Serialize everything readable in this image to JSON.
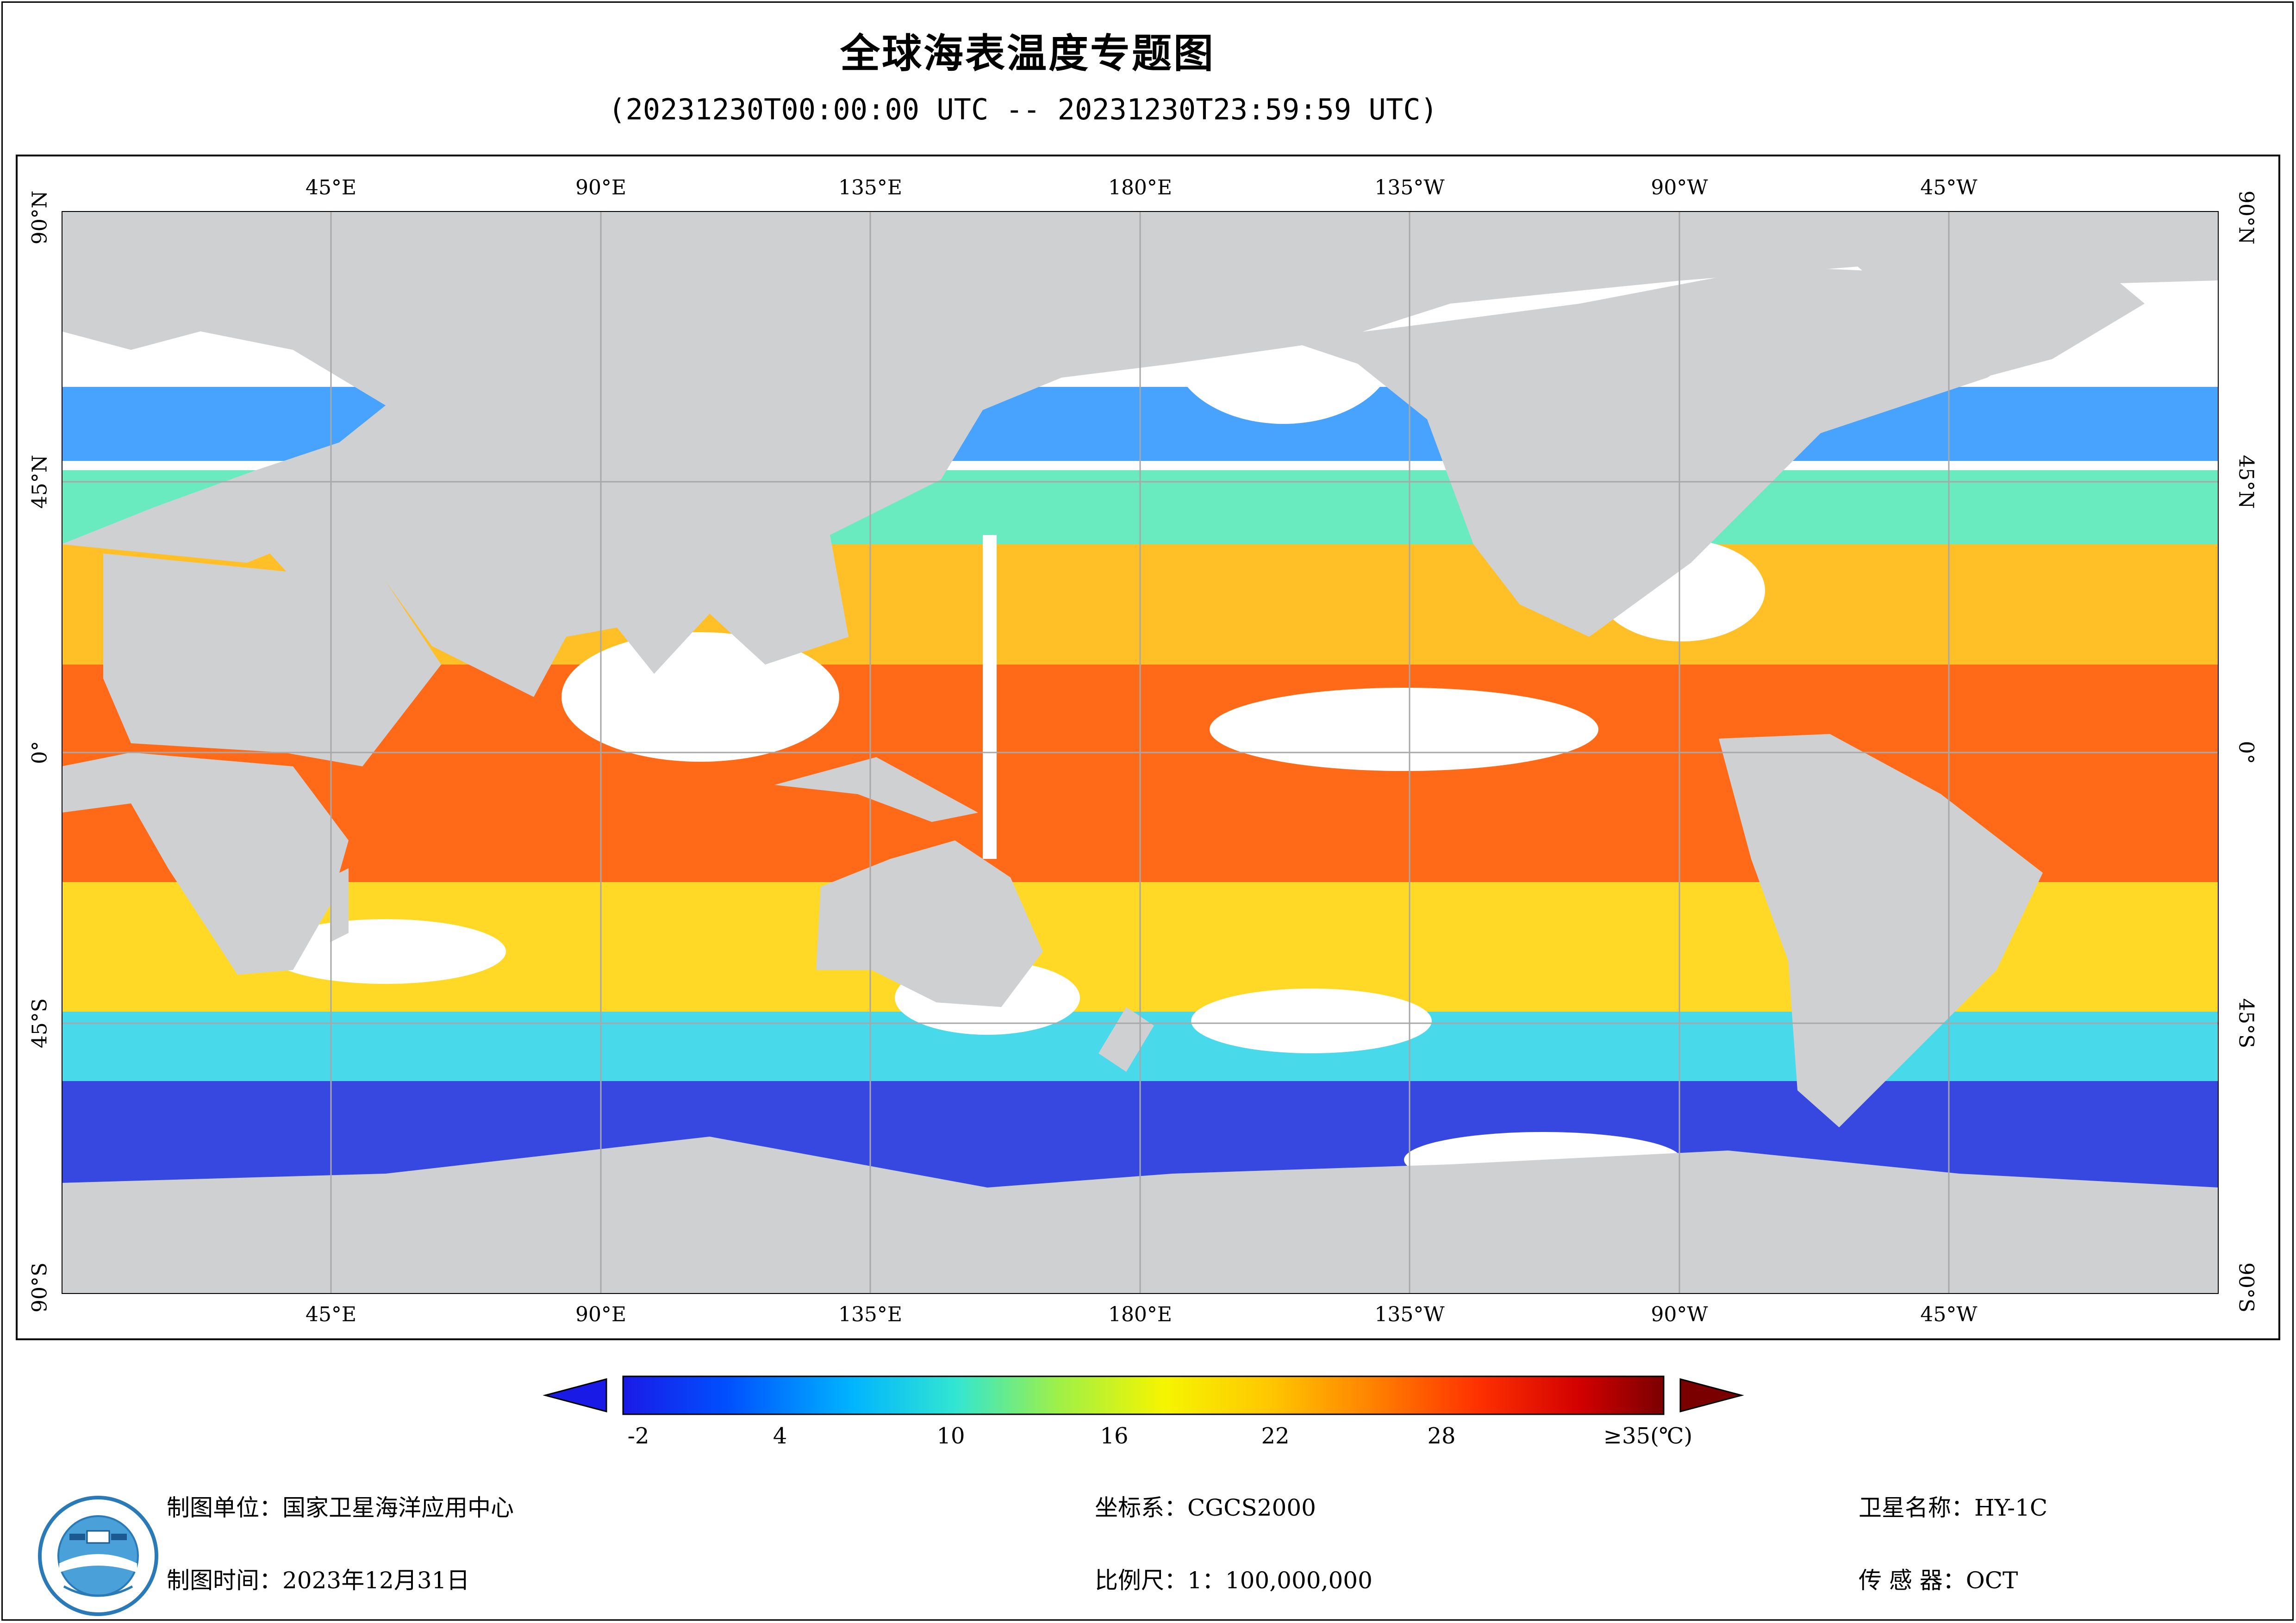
{
  "title": "全球海表温度专题图",
  "subtitle": "(20231230T00:00:00 UTC -- 20231230T23:59:59 UTC)",
  "map": {
    "top_lon_labels": [
      "45°E",
      "90°E",
      "135°E",
      "180°E",
      "135°W",
      "90°W",
      "45°W"
    ],
    "bottom_lon_labels": [
      "45°E",
      "90°E",
      "135°E",
      "180°E",
      "135°W",
      "90°W",
      "45°W"
    ],
    "left_lat_labels": [
      "90°N",
      "45°N",
      "0°",
      "45°S",
      "90°S"
    ],
    "right_lat_labels": [
      "90°N",
      "45°N",
      "0°",
      "45°S",
      "90°S"
    ],
    "colors": {
      "land": "#cfd0d2",
      "no_data": "#ffffff",
      "gridline": "#a8a8a8"
    }
  },
  "colorbar": {
    "labels": [
      "-2",
      "4",
      "10",
      "16",
      "22",
      "28",
      "≥35(℃)"
    ],
    "min_value": -2,
    "max_value": 35,
    "unit": "℃",
    "colors": [
      "#1a1ae6",
      "#0050ff",
      "#00b4ff",
      "#32e6d2",
      "#a0f046",
      "#f5f500",
      "#ffc800",
      "#ff8200",
      "#ff3200",
      "#d20000",
      "#7a0000"
    ]
  },
  "footer": {
    "unit_label": "制图单位：国家卫星海洋应用中心",
    "date_label": "制图时间：2023年12月31日",
    "crs_label": "坐标系：CGCS2000",
    "scale_label": "比例尺：1：100,000,000",
    "satellite_label": "卫星名称：HY-1C",
    "sensor_label": "传 感 器：OCT"
  }
}
